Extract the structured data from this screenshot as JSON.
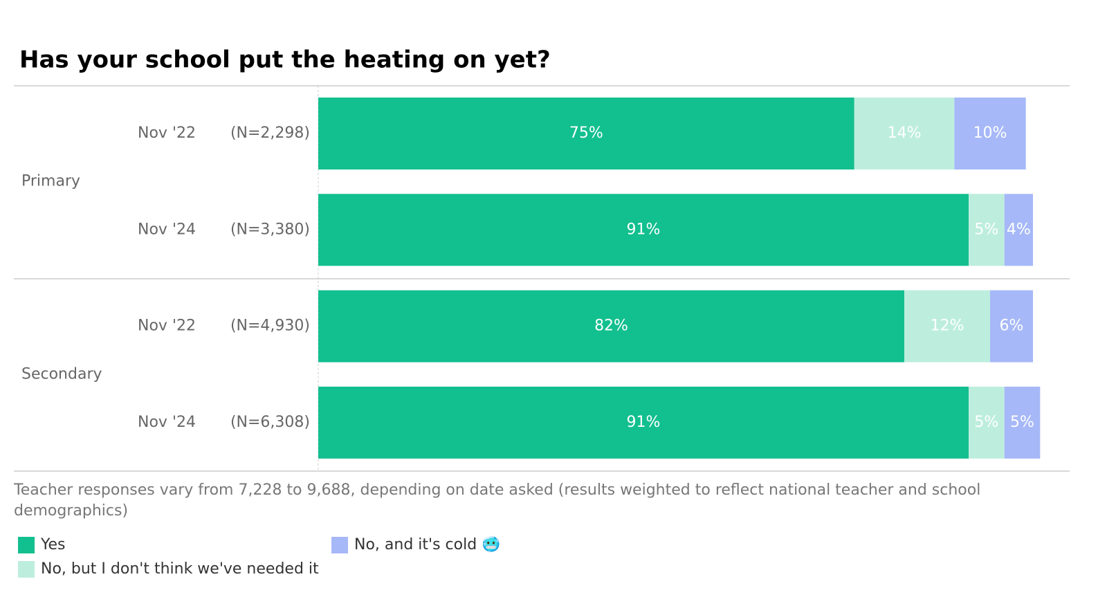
{
  "chart_data": {
    "type": "stacked-bar-horizontal",
    "title": "Has your school put the heating on yet?",
    "groups": [
      "Primary",
      "Secondary"
    ],
    "categories": [
      "Nov '22",
      "Nov '24",
      "Nov '22",
      "Nov '24"
    ],
    "sample_labels": [
      "(N=2,298)",
      "(N=3,380)",
      "(N=4,930)",
      "(N=6,308)"
    ],
    "xlim": [
      0,
      100
    ],
    "series": [
      {
        "name": "Yes",
        "color": "#12bf8f",
        "values": [
          75,
          91,
          82,
          91
        ],
        "value_labels": [
          "75%",
          "91%",
          "82%",
          "91%"
        ]
      },
      {
        "name": "No, but I don't think we've needed it",
        "color": "#bdeedd",
        "values": [
          14,
          5,
          12,
          5
        ],
        "value_labels": [
          "14%",
          "5%",
          "12%",
          "5%"
        ]
      },
      {
        "name": "No, and it's cold 🥶",
        "color": "#a6b8f7",
        "values": [
          10,
          4,
          6,
          5
        ],
        "value_labels": [
          "10%",
          "4%",
          "6%",
          "5%"
        ]
      }
    ],
    "note": "Teacher responses vary from 7,228 to 9,688, depending on date asked (results weighted to reflect national teacher and school demographics)"
  }
}
